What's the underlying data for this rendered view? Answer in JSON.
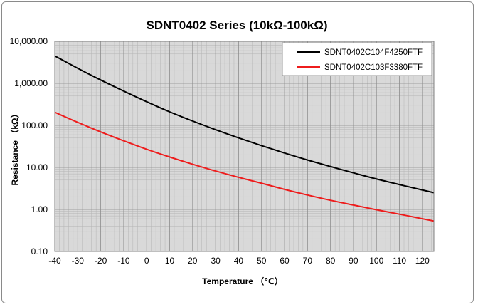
{
  "chart_data": {
    "type": "line",
    "title": "SDNT0402 Series (10kΩ-100kΩ)",
    "xlabel": "Temperature （℃）",
    "ylabel": "Resistance （kΩ）",
    "xlim": [
      -40,
      125
    ],
    "ylim": [
      0.1,
      10000
    ],
    "yscale": "log",
    "x_ticks": [
      -40,
      -30,
      -20,
      -10,
      0,
      10,
      20,
      30,
      40,
      50,
      60,
      70,
      80,
      90,
      100,
      110,
      120
    ],
    "x_tick_labels": [
      "-40",
      "-30",
      "-20",
      "-10",
      "0",
      "10",
      "20",
      "30",
      "40",
      "50",
      "60",
      "70",
      "80",
      "90",
      "100",
      "110",
      "120"
    ],
    "y_ticks": [
      0.1,
      1,
      10,
      100,
      1000,
      10000
    ],
    "y_tick_labels": [
      "0.10",
      "1.00",
      "10.00",
      "100.00",
      "1,000.00",
      "10,000.00"
    ],
    "grid": true,
    "legend_position": "top-right",
    "series": [
      {
        "name": "SDNT0402C104F4250FTF",
        "color": "#000000",
        "x": [
          -40,
          -30,
          -20,
          -10,
          0,
          10,
          20,
          30,
          40,
          50,
          60,
          70,
          80,
          90,
          100,
          110,
          120,
          125
        ],
        "values": [
          4500,
          2280,
          1200,
          655,
          365,
          210,
          127,
          79,
          50.5,
          33,
          22,
          15,
          10.5,
          7.4,
          5.3,
          3.9,
          2.9,
          2.5
        ]
      },
      {
        "name": "SDNT0402C103F3380FTF",
        "color": "#ee1c1c",
        "x": [
          -40,
          -30,
          -20,
          -10,
          0,
          10,
          20,
          30,
          40,
          50,
          60,
          70,
          80,
          90,
          100,
          110,
          120,
          125
        ],
        "values": [
          205,
          118,
          70,
          43,
          27,
          17.7,
          11.9,
          8.2,
          5.8,
          4.2,
          3.0,
          2.2,
          1.65,
          1.27,
          0.98,
          0.77,
          0.6,
          0.53
        ]
      }
    ]
  },
  "colors": {
    "plot_background": "#d9d9d9",
    "major_grid": "#8c8c8c",
    "minor_grid": "#b4b4b4"
  }
}
